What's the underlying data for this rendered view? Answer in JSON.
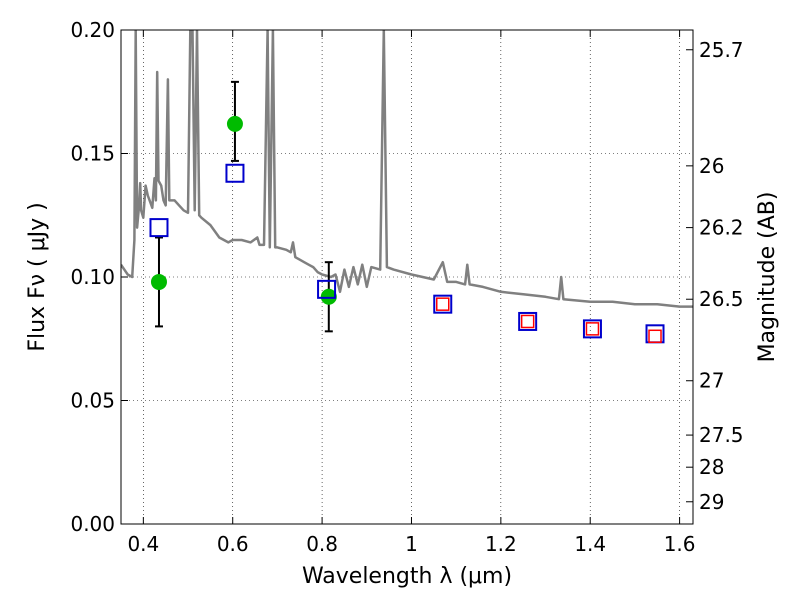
{
  "chart_data": {
    "type": "scatter",
    "xlabel": "Wavelength  λ (μm)",
    "ylabel": "Flux  Fν  ( μJy )",
    "ylabel_right": "Magnitude (AB)",
    "xlim": [
      0.35,
      1.63
    ],
    "ylim": [
      0.0,
      0.2
    ],
    "grid": true,
    "x_ticks": [
      {
        "v": 0.4,
        "label": "0.4"
      },
      {
        "v": 0.6,
        "label": "0.6"
      },
      {
        "v": 0.8,
        "label": "0.8"
      },
      {
        "v": 1.0,
        "label": "1"
      },
      {
        "v": 1.2,
        "label": "1.2"
      },
      {
        "v": 1.4,
        "label": "1.4"
      },
      {
        "v": 1.6,
        "label": "1.6"
      }
    ],
    "y_ticks": [
      {
        "v": 0.0,
        "label": "0.00"
      },
      {
        "v": 0.05,
        "label": "0.05"
      },
      {
        "v": 0.1,
        "label": "0.10"
      },
      {
        "v": 0.15,
        "label": "0.15"
      },
      {
        "v": 0.2,
        "label": "0.20"
      }
    ],
    "mag_ticks": [
      {
        "v": 25.7,
        "label": "25.7"
      },
      {
        "v": 26.0,
        "label": "26"
      },
      {
        "v": 26.2,
        "label": "26.2"
      },
      {
        "v": 26.5,
        "label": "26.5"
      },
      {
        "v": 27.0,
        "label": "27"
      },
      {
        "v": 27.5,
        "label": "27.5"
      },
      {
        "v": 28.0,
        "label": "28"
      },
      {
        "v": 29.0,
        "label": "29"
      }
    ],
    "mag_tick_flux": [
      {
        "v": 25.7,
        "flux": 0.192
      },
      {
        "v": 26.0,
        "flux": 0.145
      },
      {
        "v": 26.2,
        "flux": 0.12
      },
      {
        "v": 26.5,
        "flux": 0.091
      },
      {
        "v": 27.0,
        "flux": 0.058
      },
      {
        "v": 27.5,
        "flux": 0.036
      },
      {
        "v": 28.0,
        "flux": 0.023
      },
      {
        "v": 29.0,
        "flux": 0.009
      }
    ],
    "series": [
      {
        "kind": "line",
        "color": "#808080",
        "points": [
          [
            0.35,
            0.105
          ],
          [
            0.365,
            0.101
          ],
          [
            0.375,
            0.1
          ],
          [
            0.38,
            0.115
          ],
          [
            0.383,
            0.2
          ],
          [
            0.386,
            0.12
          ],
          [
            0.39,
            0.128
          ],
          [
            0.393,
            0.138
          ],
          [
            0.395,
            0.127
          ],
          [
            0.4,
            0.124
          ],
          [
            0.405,
            0.137
          ],
          [
            0.41,
            0.133
          ],
          [
            0.42,
            0.128
          ],
          [
            0.425,
            0.14
          ],
          [
            0.428,
            0.131
          ],
          [
            0.431,
            0.183
          ],
          [
            0.434,
            0.139
          ],
          [
            0.44,
            0.137
          ],
          [
            0.445,
            0.131
          ],
          [
            0.45,
            0.129
          ],
          [
            0.455,
            0.18
          ],
          [
            0.458,
            0.131
          ],
          [
            0.47,
            0.131
          ],
          [
            0.48,
            0.129
          ],
          [
            0.49,
            0.127
          ],
          [
            0.5,
            0.126
          ],
          [
            0.505,
            0.2
          ],
          [
            0.51,
            0.2
          ],
          [
            0.515,
            0.127
          ],
          [
            0.52,
            0.2
          ],
          [
            0.525,
            0.125
          ],
          [
            0.53,
            0.124
          ],
          [
            0.55,
            0.121
          ],
          [
            0.57,
            0.116
          ],
          [
            0.59,
            0.114
          ],
          [
            0.6,
            0.115
          ],
          [
            0.62,
            0.115
          ],
          [
            0.64,
            0.114
          ],
          [
            0.655,
            0.116
          ],
          [
            0.66,
            0.113
          ],
          [
            0.67,
            0.113
          ],
          [
            0.678,
            0.2
          ],
          [
            0.683,
            0.112
          ],
          [
            0.69,
            0.2
          ],
          [
            0.695,
            0.112
          ],
          [
            0.7,
            0.112
          ],
          [
            0.72,
            0.111
          ],
          [
            0.73,
            0.11
          ],
          [
            0.735,
            0.114
          ],
          [
            0.74,
            0.108
          ],
          [
            0.75,
            0.107
          ],
          [
            0.76,
            0.106
          ],
          [
            0.77,
            0.105
          ],
          [
            0.78,
            0.104
          ],
          [
            0.79,
            0.102
          ],
          [
            0.8,
            0.101
          ],
          [
            0.82,
            0.1
          ],
          [
            0.83,
            0.101
          ],
          [
            0.84,
            0.094
          ],
          [
            0.85,
            0.103
          ],
          [
            0.86,
            0.096
          ],
          [
            0.87,
            0.104
          ],
          [
            0.88,
            0.097
          ],
          [
            0.89,
            0.105
          ],
          [
            0.9,
            0.096
          ],
          [
            0.91,
            0.104
          ],
          [
            0.93,
            0.103
          ],
          [
            0.938,
            0.2
          ],
          [
            0.945,
            0.104
          ],
          [
            0.96,
            0.103
          ],
          [
            1.0,
            0.101
          ],
          [
            1.05,
            0.099
          ],
          [
            1.07,
            0.106
          ],
          [
            1.08,
            0.098
          ],
          [
            1.1,
            0.098
          ],
          [
            1.12,
            0.097
          ],
          [
            1.125,
            0.105
          ],
          [
            1.13,
            0.097
          ],
          [
            1.16,
            0.096
          ],
          [
            1.2,
            0.094
          ],
          [
            1.25,
            0.093
          ],
          [
            1.3,
            0.092
          ],
          [
            1.33,
            0.091
          ],
          [
            1.335,
            0.1
          ],
          [
            1.34,
            0.091
          ],
          [
            1.4,
            0.09
          ],
          [
            1.45,
            0.09
          ],
          [
            1.5,
            0.089
          ],
          [
            1.55,
            0.089
          ],
          [
            1.6,
            0.088
          ],
          [
            1.63,
            0.088
          ]
        ]
      },
      {
        "kind": "markers",
        "marker": "circle",
        "color": "#00bb00",
        "points": [
          {
            "x": 0.435,
            "y": 0.098,
            "err": [
              0.08,
              0.116
            ]
          },
          {
            "x": 0.605,
            "y": 0.162,
            "err": [
              0.147,
              0.179
            ]
          },
          {
            "x": 0.815,
            "y": 0.092,
            "err": [
              0.078,
              0.106
            ]
          }
        ]
      },
      {
        "kind": "markers",
        "marker": "square",
        "color": "#0000cc",
        "points": [
          {
            "x": 0.435,
            "y": 0.12
          },
          {
            "x": 0.605,
            "y": 0.142
          },
          {
            "x": 0.81,
            "y": 0.095
          },
          {
            "x": 1.07,
            "y": 0.089
          },
          {
            "x": 1.26,
            "y": 0.082
          },
          {
            "x": 1.405,
            "y": 0.079
          },
          {
            "x": 1.545,
            "y": 0.077
          }
        ]
      },
      {
        "kind": "markers",
        "marker": "square-small",
        "color": "#ff0000",
        "points": [
          {
            "x": 1.07,
            "y": 0.089
          },
          {
            "x": 1.26,
            "y": 0.082
          },
          {
            "x": 1.405,
            "y": 0.079
          },
          {
            "x": 1.545,
            "y": 0.076
          }
        ]
      }
    ]
  }
}
